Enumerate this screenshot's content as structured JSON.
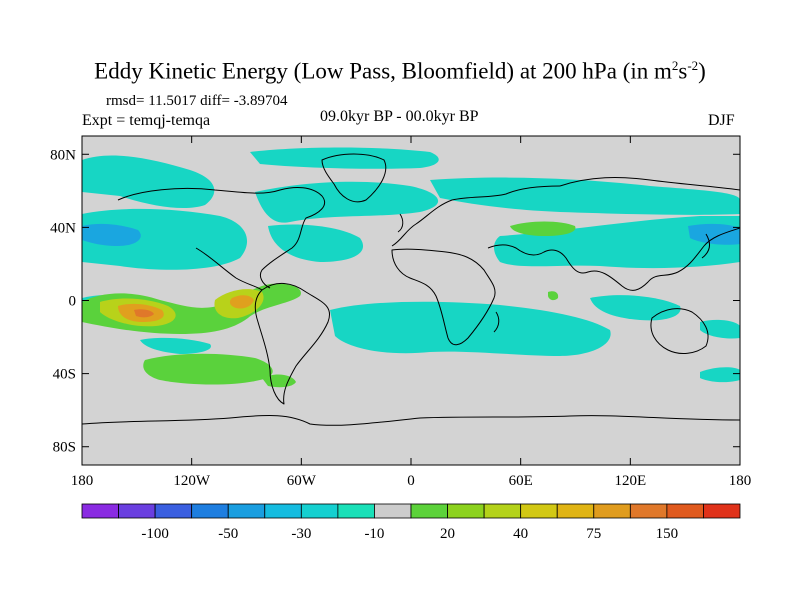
{
  "title": {
    "main": "Eddy Kinetic Energy (Low Pass, Bloomfield) at 200 hPa (in m",
    "sup1": "2",
    "mid": "s",
    "sup2": "-2",
    "end": ")"
  },
  "stats": "rmsd= 11.5017 diff= -3.89704",
  "expt": "Expt = temqj-temqa",
  "period": "09.0kyr BP - 00.0kyr BP",
  "season": "DJF",
  "map": {
    "background_color": "#d3d3d3",
    "lon_ticks": [
      {
        "lon": -180,
        "label": "180"
      },
      {
        "lon": -120,
        "label": "120W"
      },
      {
        "lon": -60,
        "label": "60W"
      },
      {
        "lon": 0,
        "label": "0"
      },
      {
        "lon": 60,
        "label": "60E"
      },
      {
        "lon": 120,
        "label": "120E"
      },
      {
        "lon": 180,
        "label": "180"
      }
    ],
    "lat_ticks": [
      {
        "lat": 80,
        "label": "80N"
      },
      {
        "lat": 40,
        "label": "40N"
      },
      {
        "lat": 0,
        "label": "0"
      },
      {
        "lat": -40,
        "label": "40S"
      },
      {
        "lat": -80,
        "label": "80S"
      }
    ],
    "lon_range": [
      -180,
      180
    ],
    "lat_range": [
      -90,
      90
    ]
  },
  "colorbar": {
    "colors": [
      "#8a2be2",
      "#6a3fe0",
      "#3a5fe0",
      "#1e7ee0",
      "#1a9ee0",
      "#15bce0",
      "#15d0d0",
      "#1ae0b8",
      "#cccccc",
      "#5cd23a",
      "#8cd21e",
      "#b4d21a",
      "#d2c814",
      "#e0b414",
      "#e09c1e",
      "#e0782a",
      "#e05a1e",
      "#e0321a"
    ],
    "labels": [
      {
        "after": 2,
        "text": "-100"
      },
      {
        "after": 4,
        "text": "-50"
      },
      {
        "after": 6,
        "text": "-30"
      },
      {
        "after": 8,
        "text": "-10"
      },
      {
        "after": 10,
        "text": "20"
      },
      {
        "after": 12,
        "text": "40"
      },
      {
        "after": 14,
        "text": "75"
      },
      {
        "after": 16,
        "text": "150"
      }
    ]
  }
}
